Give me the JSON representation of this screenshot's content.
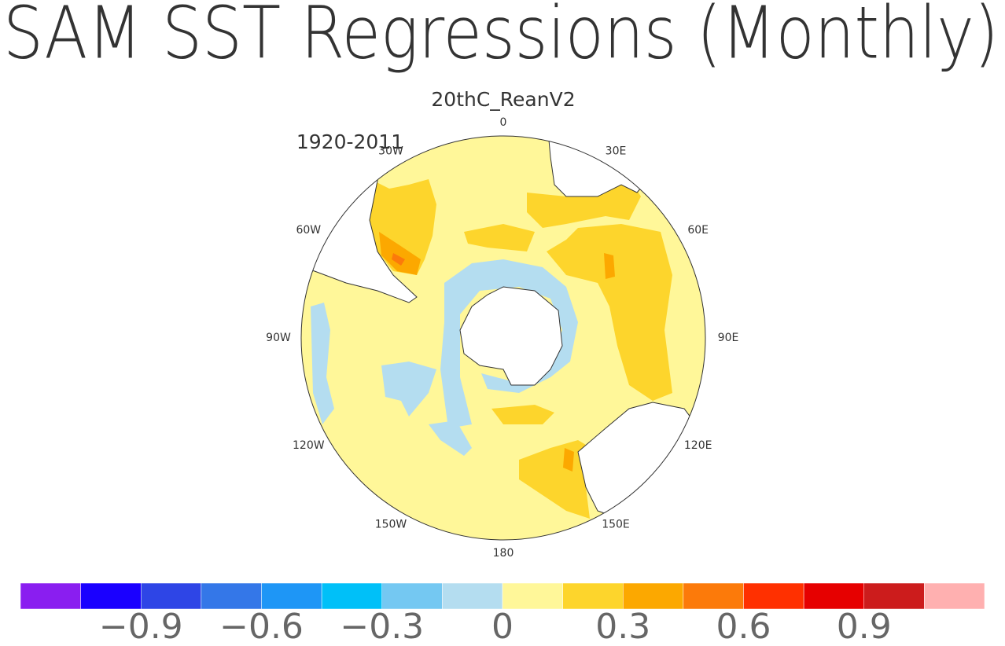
{
  "title": "SAM SST Regressions (Monthly)",
  "subtitle": "20thC_ReanV2",
  "period": "1920-2011",
  "map": {
    "lon_labels": [
      "0",
      "30E",
      "60E",
      "90E",
      "120E",
      "150E",
      "180",
      "150W",
      "120W",
      "90W",
      "60W",
      "30W"
    ]
  },
  "colorbar": {
    "colors": [
      "#8a1ef0",
      "#1a00ff",
      "#2e45e6",
      "#3477e8",
      "#1e96f6",
      "#00c0f8",
      "#74c8f2",
      "#b4ddf0",
      "#fff799",
      "#fdd52c",
      "#fca800",
      "#fc7a0a",
      "#ff3000",
      "#e60000",
      "#cc1c1c",
      "#ffb0b0"
    ],
    "xlim": [
      -1.2,
      1.2
    ],
    "ticks": [
      {
        "value": -0.9,
        "label": "−0.9"
      },
      {
        "value": -0.6,
        "label": "−0.6"
      },
      {
        "value": -0.3,
        "label": "−0.3"
      },
      0,
      0.3,
      0.6,
      0.9
    ]
  }
}
